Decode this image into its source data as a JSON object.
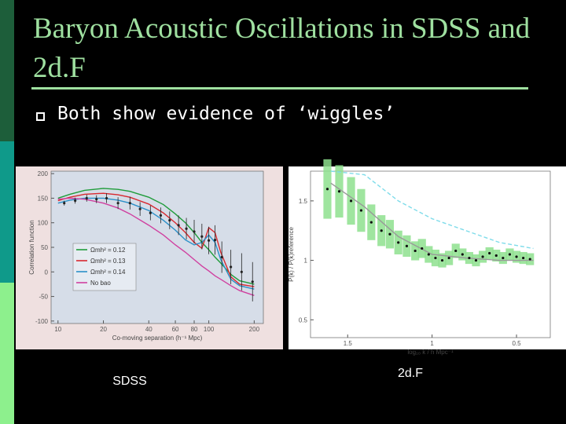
{
  "title": "Baryon Acoustic Oscillations in SDSS and 2d.F",
  "bullet": "Both show evidence of ‘wiggles’",
  "chart_data": [
    {
      "type": "line",
      "caption": "SDSS",
      "x_label": "Co-moving separation (h⁻¹ Mpc)",
      "y_label": "Correlation function",
      "xscale": "log",
      "xlim": [
        9,
        230
      ],
      "xticks": [
        10,
        20,
        40,
        60,
        80,
        100,
        200
      ],
      "ylim": [
        -105,
        205
      ],
      "yticks": [
        -100,
        -50,
        0,
        50,
        100,
        150,
        200
      ],
      "series": [
        {
          "name": "Ωmh² = 0.12",
          "color": "#1f9c3a",
          "x": [
            10,
            12,
            15,
            20,
            25,
            30,
            40,
            50,
            60,
            70,
            80,
            90,
            100,
            110,
            120,
            140,
            160,
            200
          ],
          "values": [
            150,
            158,
            166,
            170,
            168,
            164,
            152,
            137,
            118,
            100,
            80,
            60,
            45,
            30,
            18,
            -5,
            -18,
            -25
          ]
        },
        {
          "name": "Ωmh² = 0.13",
          "color": "#d8282f",
          "x": [
            10,
            12,
            15,
            20,
            25,
            30,
            40,
            50,
            60,
            70,
            80,
            90,
            100,
            110,
            120,
            140,
            160,
            200
          ],
          "values": [
            145,
            152,
            158,
            160,
            157,
            152,
            138,
            120,
            100,
            80,
            60,
            48,
            90,
            80,
            40,
            -10,
            -25,
            -30
          ]
        },
        {
          "name": "Ωmh² = 0.14",
          "color": "#2a8fc8",
          "x": [
            10,
            12,
            15,
            20,
            25,
            30,
            40,
            50,
            60,
            70,
            80,
            90,
            100,
            110,
            120,
            140,
            160,
            200
          ],
          "values": [
            140,
            146,
            150,
            150,
            146,
            140,
            125,
            105,
            85,
            65,
            55,
            60,
            75,
            60,
            25,
            -15,
            -28,
            -35
          ]
        },
        {
          "name": "No bao",
          "color": "#d040a0",
          "x": [
            10,
            12,
            15,
            20,
            25,
            30,
            40,
            50,
            60,
            70,
            80,
            90,
            100,
            110,
            120,
            140,
            160,
            200
          ],
          "values": [
            148,
            150,
            148,
            140,
            130,
            118,
            95,
            75,
            55,
            40,
            25,
            12,
            2,
            -8,
            -15,
            -28,
            -38,
            -48
          ]
        }
      ],
      "points": {
        "color": "#222222",
        "x": [
          11,
          13,
          15.5,
          18,
          21,
          25,
          30,
          35,
          41,
          48,
          55,
          63,
          71,
          80,
          90,
          100,
          110,
          122,
          140,
          165,
          195
        ],
        "values": [
          140,
          145,
          150,
          148,
          150,
          140,
          140,
          128,
          120,
          115,
          105,
          95,
          88,
          82,
          72,
          64,
          65,
          30,
          10,
          0,
          -20
        ],
        "errors": [
          5,
          6,
          7,
          8,
          10,
          12,
          13,
          14,
          15,
          16,
          18,
          20,
          22,
          24,
          26,
          28,
          30,
          32,
          35,
          38,
          40
        ]
      }
    },
    {
      "type": "line",
      "caption": "2d.F",
      "x_label": "log₁₀ k / h Mpc⁻¹",
      "y_label": "P(k) / P(k)reference",
      "xlim": [
        1.72,
        0.3
      ],
      "xticks": [
        1.5,
        1,
        0.5
      ],
      "ylim": [
        0.35,
        1.75
      ],
      "yticks": [
        0.5,
        1,
        1.5
      ],
      "series": [
        {
          "color": "#7fdcea",
          "dash": true,
          "x": [
            1.6,
            1.4,
            1.2,
            1.0,
            0.8,
            0.6,
            0.4
          ],
          "values": [
            1.75,
            1.72,
            1.5,
            1.35,
            1.25,
            1.15,
            1.1
          ]
        },
        {
          "color": "#999999",
          "x": [
            1.6,
            1.4,
            1.2,
            1.0,
            0.8,
            0.6,
            0.4
          ],
          "values": [
            1.65,
            1.45,
            1.2,
            1.05,
            1.02,
            1.0,
            1.0
          ]
        }
      ],
      "points": {
        "color": "#111111",
        "band_color": "#8ee08e",
        "x": [
          1.62,
          1.55,
          1.48,
          1.42,
          1.36,
          1.3,
          1.25,
          1.2,
          1.15,
          1.1,
          1.06,
          1.02,
          0.98,
          0.94,
          0.9,
          0.86,
          0.82,
          0.78,
          0.74,
          0.7,
          0.66,
          0.62,
          0.58,
          0.54,
          0.5,
          0.46,
          0.42
        ],
        "values": [
          1.6,
          1.58,
          1.5,
          1.42,
          1.32,
          1.25,
          1.22,
          1.15,
          1.12,
          1.08,
          1.1,
          1.05,
          1.02,
          1.0,
          1.02,
          1.08,
          1.05,
          1.02,
          1.0,
          1.03,
          1.06,
          1.04,
          1.02,
          1.05,
          1.03,
          1.02,
          1.01
        ],
        "errors": [
          0.25,
          0.22,
          0.2,
          0.18,
          0.15,
          0.13,
          0.12,
          0.1,
          0.09,
          0.08,
          0.08,
          0.07,
          0.07,
          0.06,
          0.06,
          0.06,
          0.05,
          0.05,
          0.05,
          0.05,
          0.05,
          0.05,
          0.05,
          0.05,
          0.05,
          0.05,
          0.05
        ]
      }
    }
  ]
}
